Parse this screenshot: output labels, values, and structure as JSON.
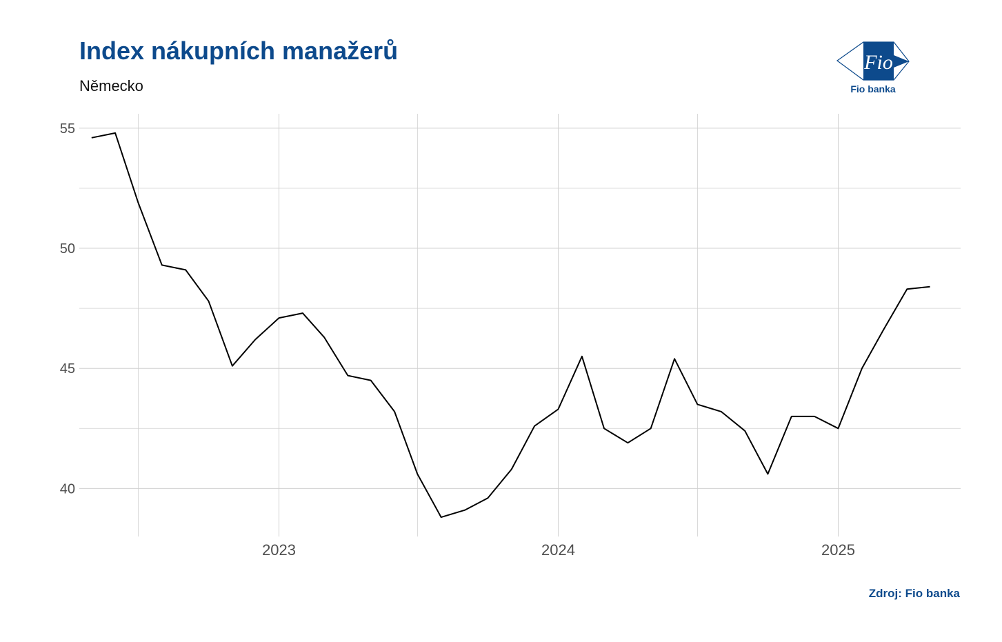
{
  "colors": {
    "brand": "#0d4a8c",
    "line": "#000000",
    "grid": "#d0d0d0"
  },
  "header": {
    "title": "Index nákupních manažerů",
    "subtitle": "Německo"
  },
  "logo": {
    "mark_text": "Fio",
    "label": "Fio banka"
  },
  "footer": {
    "source": "Zdroj: Fio banka"
  },
  "chart_data": {
    "type": "line",
    "x_tick_labels": [
      "2023",
      "2024",
      "2025"
    ],
    "y_tick_labels": [
      "40",
      "45",
      "50",
      "55"
    ],
    "ylim": [
      38.0,
      55.6
    ],
    "xlim": [
      "2022-04-15",
      "2025-06-10"
    ],
    "grid": true,
    "series": [
      {
        "x": [
          "2022-05-01",
          "2022-06-01",
          "2022-07-01",
          "2022-08-01",
          "2022-09-01",
          "2022-10-01",
          "2022-11-01",
          "2022-12-01",
          "2023-01-01",
          "2023-02-01",
          "2023-03-01",
          "2023-04-01",
          "2023-05-01",
          "2023-06-01",
          "2023-07-01",
          "2023-08-01",
          "2023-09-01",
          "2023-10-01",
          "2023-11-01",
          "2023-12-01",
          "2024-01-01",
          "2024-02-01",
          "2024-03-01",
          "2024-04-01",
          "2024-05-01",
          "2024-06-01",
          "2024-07-01",
          "2024-08-01",
          "2024-09-01",
          "2024-10-01",
          "2024-11-01",
          "2024-12-01",
          "2025-01-01",
          "2025-02-01",
          "2025-03-01",
          "2025-04-01",
          "2025-05-01"
        ],
        "y": [
          54.6,
          54.8,
          51.9,
          49.3,
          49.1,
          47.8,
          45.1,
          46.2,
          47.1,
          47.3,
          46.3,
          44.7,
          44.5,
          43.2,
          40.6,
          38.8,
          39.1,
          39.6,
          40.8,
          42.6,
          43.3,
          45.5,
          42.5,
          41.9,
          42.5,
          45.4,
          43.5,
          43.2,
          42.4,
          40.6,
          43.0,
          43.0,
          42.5,
          45.0,
          46.6,
          48.3,
          48.4
        ]
      }
    ]
  }
}
